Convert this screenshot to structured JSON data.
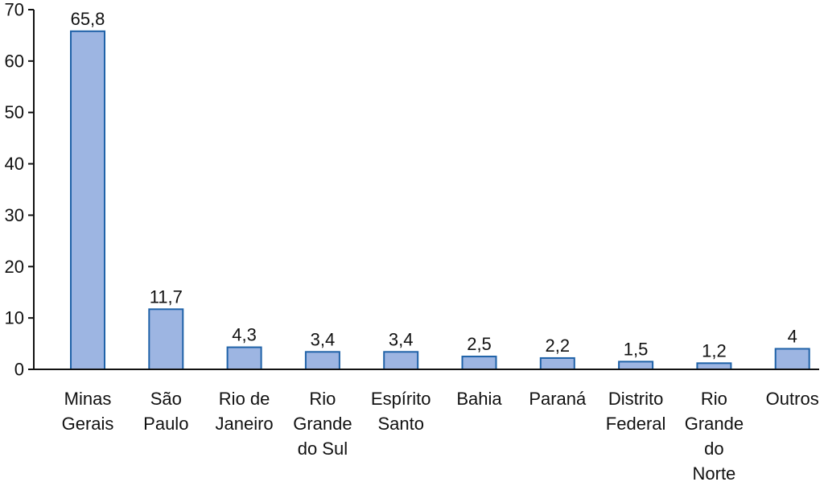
{
  "chart_data": {
    "type": "bar",
    "title": "",
    "xlabel": "",
    "ylabel": "",
    "ylim": [
      0,
      70
    ],
    "yticks": [
      "0",
      "10",
      "20",
      "30",
      "40",
      "50",
      "60",
      "70"
    ],
    "grid": false,
    "bar_fill": "#9db5e2",
    "bar_stroke": "#1f62a8",
    "categories": [
      [
        "Minas",
        "Gerais"
      ],
      [
        "São",
        "Paulo"
      ],
      [
        "Rio de",
        "Janeiro"
      ],
      [
        "Rio",
        "Grande",
        "do Sul"
      ],
      [
        "Espírito",
        "Santo"
      ],
      [
        "Bahia"
      ],
      [
        "Paraná"
      ],
      [
        "Distrito",
        "Federal"
      ],
      [
        "Rio",
        "Grande",
        "do",
        "Norte"
      ],
      [
        "Outros"
      ]
    ],
    "values": [
      65.8,
      11.7,
      4.3,
      3.4,
      3.4,
      2.5,
      2.2,
      1.5,
      1.2,
      4
    ],
    "value_labels": [
      "65,8",
      "11,7",
      "4,3",
      "3,4",
      "3,4",
      "2,5",
      "2,2",
      "1,5",
      "1,2",
      "4"
    ]
  }
}
